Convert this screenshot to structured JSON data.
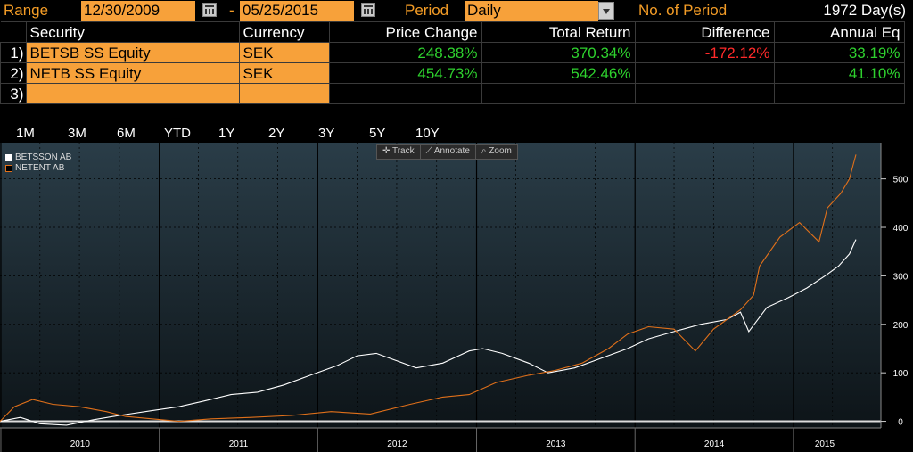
{
  "header": {
    "range_label": "Range",
    "start_date": "12/30/2009",
    "dash": "-",
    "end_date": "05/25/2015",
    "period_label": "Period",
    "period_value": "Daily",
    "no_of_period_label": "No. of Period",
    "no_of_period_value": "1972 Day(s)"
  },
  "table": {
    "headers": [
      "Security",
      "Currency",
      "Price Change",
      "Total Return",
      "Difference",
      "Annual Eq"
    ],
    "rows": [
      {
        "num": "1)",
        "security": "BETSB SS Equity",
        "currency": "SEK",
        "price_change": "248.38%",
        "total_return": "370.34%",
        "difference": "-172.12%",
        "annual_eq": "33.19%"
      },
      {
        "num": "2)",
        "security": "NETB SS Equity",
        "currency": "SEK",
        "price_change": "454.73%",
        "total_return": "542.46%",
        "difference": "",
        "annual_eq": "41.10%"
      },
      {
        "num": "3)",
        "security": "",
        "currency": "",
        "price_change": "",
        "total_return": "",
        "difference": "",
        "annual_eq": ""
      }
    ]
  },
  "tabs": [
    "1M",
    "3M",
    "6M",
    "YTD",
    "1Y",
    "2Y",
    "3Y",
    "5Y",
    "10Y"
  ],
  "toolbar": {
    "track": "Track",
    "annotate": "Annotate",
    "zoom": "Zoom"
  },
  "colors": {
    "accent": "#f7a13a",
    "positive": "#2ed12e",
    "negative": "#ff2a2a",
    "betsson": "#ffffff",
    "netent": "#e0701a"
  },
  "chart_data": {
    "type": "line",
    "x_range": [
      "2009-12-30",
      "2015-05-25"
    ],
    "x_ticks": [
      "2010",
      "2011",
      "2012",
      "2013",
      "2014",
      "2015"
    ],
    "ylim": [
      -10,
      560
    ],
    "y_ticks": [
      0,
      100,
      200,
      300,
      400,
      500
    ],
    "grid": true,
    "legend": "top-left",
    "series": [
      {
        "name": "BETSSON AB",
        "color": "#ffffff",
        "points": [
          [
            "2009-12-30",
            0
          ],
          [
            "2010-02-15",
            8
          ],
          [
            "2010-04-01",
            -5
          ],
          [
            "2010-06-01",
            -8
          ],
          [
            "2010-08-01",
            3
          ],
          [
            "2010-10-01",
            12
          ],
          [
            "2010-12-15",
            22
          ],
          [
            "2011-02-15",
            30
          ],
          [
            "2011-04-15",
            42
          ],
          [
            "2011-06-15",
            55
          ],
          [
            "2011-08-15",
            60
          ],
          [
            "2011-10-15",
            75
          ],
          [
            "2011-12-15",
            95
          ],
          [
            "2012-02-15",
            115
          ],
          [
            "2012-04-01",
            135
          ],
          [
            "2012-05-15",
            140
          ],
          [
            "2012-06-15",
            130
          ],
          [
            "2012-08-15",
            110
          ],
          [
            "2012-10-15",
            120
          ],
          [
            "2012-12-15",
            145
          ],
          [
            "2013-01-15",
            150
          ],
          [
            "2013-03-01",
            140
          ],
          [
            "2013-05-01",
            120
          ],
          [
            "2013-06-15",
            100
          ],
          [
            "2013-08-15",
            110
          ],
          [
            "2013-10-15",
            130
          ],
          [
            "2013-12-15",
            150
          ],
          [
            "2014-02-01",
            170
          ],
          [
            "2014-04-01",
            185
          ],
          [
            "2014-06-01",
            200
          ],
          [
            "2014-08-01",
            210
          ],
          [
            "2014-09-01",
            225
          ],
          [
            "2014-09-20",
            185
          ],
          [
            "2014-11-01",
            235
          ],
          [
            "2014-12-20",
            255
          ],
          [
            "2015-02-01",
            275
          ],
          [
            "2015-03-15",
            300
          ],
          [
            "2015-04-15",
            320
          ],
          [
            "2015-05-10",
            345
          ],
          [
            "2015-05-25",
            375
          ]
        ]
      },
      {
        "name": "NETENT AB",
        "color": "#e0701a",
        "points": [
          [
            "2009-12-30",
            0
          ],
          [
            "2010-02-01",
            30
          ],
          [
            "2010-03-15",
            45
          ],
          [
            "2010-05-01",
            35
          ],
          [
            "2010-07-01",
            30
          ],
          [
            "2010-09-01",
            20
          ],
          [
            "2010-10-15",
            10
          ],
          [
            "2010-12-15",
            5
          ],
          [
            "2011-02-15",
            0
          ],
          [
            "2011-05-01",
            5
          ],
          [
            "2011-08-01",
            8
          ],
          [
            "2011-11-01",
            12
          ],
          [
            "2012-02-01",
            20
          ],
          [
            "2012-05-01",
            15
          ],
          [
            "2012-08-01",
            35
          ],
          [
            "2012-10-15",
            50
          ],
          [
            "2012-12-15",
            55
          ],
          [
            "2013-02-15",
            80
          ],
          [
            "2013-05-01",
            95
          ],
          [
            "2013-07-01",
            105
          ],
          [
            "2013-09-01",
            120
          ],
          [
            "2013-11-01",
            150
          ],
          [
            "2013-12-15",
            180
          ],
          [
            "2014-02-01",
            195
          ],
          [
            "2014-04-01",
            190
          ],
          [
            "2014-05-20",
            145
          ],
          [
            "2014-07-01",
            190
          ],
          [
            "2014-09-01",
            230
          ],
          [
            "2014-10-01",
            260
          ],
          [
            "2014-10-15",
            320
          ],
          [
            "2014-12-01",
            380
          ],
          [
            "2015-01-15",
            410
          ],
          [
            "2015-03-01",
            370
          ],
          [
            "2015-03-20",
            440
          ],
          [
            "2015-04-20",
            470
          ],
          [
            "2015-05-10",
            500
          ],
          [
            "2015-05-25",
            550
          ]
        ]
      }
    ]
  }
}
